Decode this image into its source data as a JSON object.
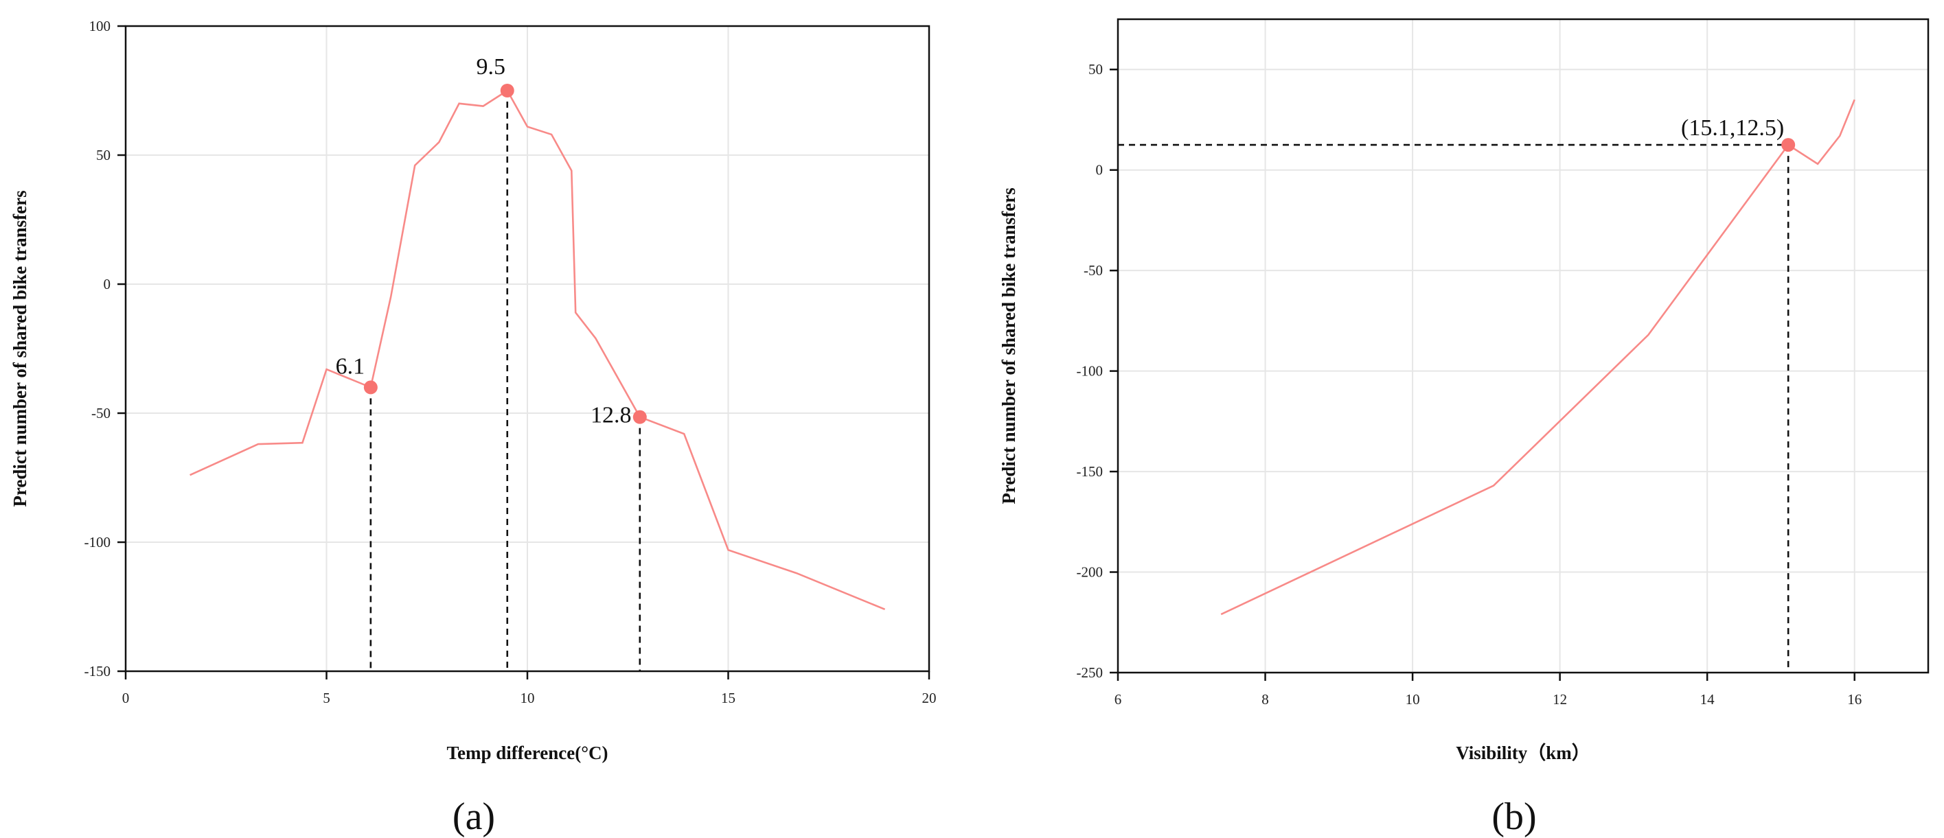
{
  "chart_data": [
    {
      "type": "line",
      "caption": "(a)",
      "xlabel": "Temp difference(°C)",
      "ylabel": "Predict number of shared bike transfers",
      "xlim": [
        0,
        20
      ],
      "ylim": [
        -150,
        100
      ],
      "xticks": [
        0,
        5,
        10,
        15,
        20
      ],
      "yticks": [
        -150,
        -100,
        -50,
        0,
        50,
        100
      ],
      "grid": true,
      "line_color": "#f88a88",
      "marker_color": "#f77370",
      "series": [
        {
          "x": [
            1.6,
            3.3,
            4.4,
            5.0,
            6.1,
            6.6,
            7.2,
            7.8,
            8.3,
            8.9,
            9.5,
            10.0,
            10.6,
            11.1,
            11.2,
            11.7,
            12.8,
            13.9,
            15.0,
            16.7,
            18.9
          ],
          "y": [
            -74,
            -62,
            -61.5,
            -33,
            -40,
            -5,
            46,
            55,
            70,
            69,
            75,
            61,
            58,
            44,
            -11,
            -21,
            -51.5,
            -58,
            -103,
            -112,
            -126
          ]
        }
      ],
      "highlights": [
        {
          "x": 6.1,
          "y": -40,
          "label": "6.1"
        },
        {
          "x": 9.5,
          "y": 75,
          "label": "9.5"
        },
        {
          "x": 12.8,
          "y": -51.5,
          "label": "12.8"
        }
      ]
    },
    {
      "type": "line",
      "caption": "(b)",
      "xlabel": "Visibility（km）",
      "ylabel": "Predict number of shared bike transfers",
      "xlim": [
        6,
        17
      ],
      "ylim": [
        -250,
        75
      ],
      "xticks": [
        6,
        8,
        10,
        12,
        14,
        16
      ],
      "yticks": [
        -250,
        -200,
        -150,
        -100,
        -50,
        0,
        50
      ],
      "grid": true,
      "line_color": "#f88a88",
      "marker_color": "#f77370",
      "series": [
        {
          "x": [
            7.4,
            11.1,
            13.2,
            15.1,
            15.5,
            15.8,
            16.0
          ],
          "y": [
            -221,
            -157,
            -82,
            12.5,
            3,
            17,
            35
          ]
        }
      ],
      "highlights": [
        {
          "x": 15.1,
          "y": 12.5,
          "label": "(15.1,12.5)"
        }
      ]
    }
  ]
}
